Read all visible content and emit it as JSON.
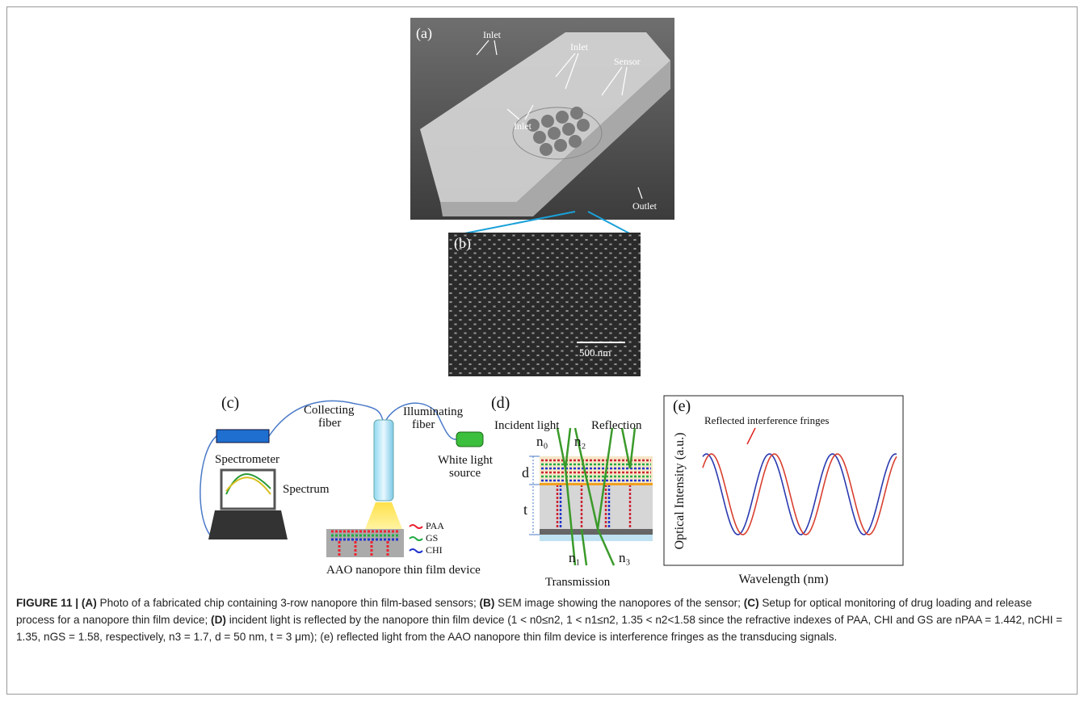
{
  "panels": {
    "a": {
      "label": "(a)",
      "inlet_1": "Inlet",
      "inlet_2": "Inlet",
      "sensor": "Sensor",
      "inlet_3": "Inlet",
      "outlet": "Outlet"
    },
    "b": {
      "label": "(b)",
      "scale": "500 nm"
    },
    "c": {
      "label": "(c)",
      "collecting": [
        "Collecting",
        "fiber"
      ],
      "illuminating": [
        "Illuminating",
        "fiber"
      ],
      "source": [
        "White light",
        "source"
      ],
      "spectrometer": "Spectrometer",
      "spectrum": "Spectrum",
      "legend": [
        "PAA",
        "GS",
        "CHI"
      ],
      "device": "AAO nanopore thin film device"
    },
    "d": {
      "label": "(d)",
      "incident": "Incident light",
      "reflection": "Reflection",
      "n0": "n₀",
      "n2": "n₂",
      "d": "d",
      "t": "t",
      "n1": "n₁",
      "n3": "n₃",
      "transmission": "Transmission"
    },
    "e": {
      "label": "(e)",
      "annotation": "Reflected interference fringes",
      "y_label": "Optical Intensity (a.u.)",
      "x_label": "Wavelength (nm)"
    }
  },
  "caption": [
    {
      "text": "FIGURE 11 | (A)",
      "bold": true
    },
    {
      "text": " Photo of a fabricated chip containing 3-row nanopore thin film-based sensors; ",
      "bold": false
    },
    {
      "text": "(B)",
      "bold": true
    },
    {
      "text": " SEM image showing the nanopores of the sensor; ",
      "bold": false
    },
    {
      "text": "(C)",
      "bold": true
    },
    {
      "text": " Setup for optical monitoring of drug loading and release process for a nanopore thin film device; ",
      "bold": false
    },
    {
      "text": "(D)",
      "bold": true
    },
    {
      "text": " incident light is reflected by the nanopore thin film device (1 < n0≤n2, 1 < n1≤n2, 1.35 < n2<1.58 since the refractive indexes of PAA, CHI and GS are nPAA = 1.442, nCHI = 1.35, nGS = 1.58, respectively, n3 = 1.7, d = 50 nm, t = 3 μm); (e) reflected light from the AAO nanopore thin film device is interference fringes as the transducing signals.",
      "bold": false
    }
  ]
}
